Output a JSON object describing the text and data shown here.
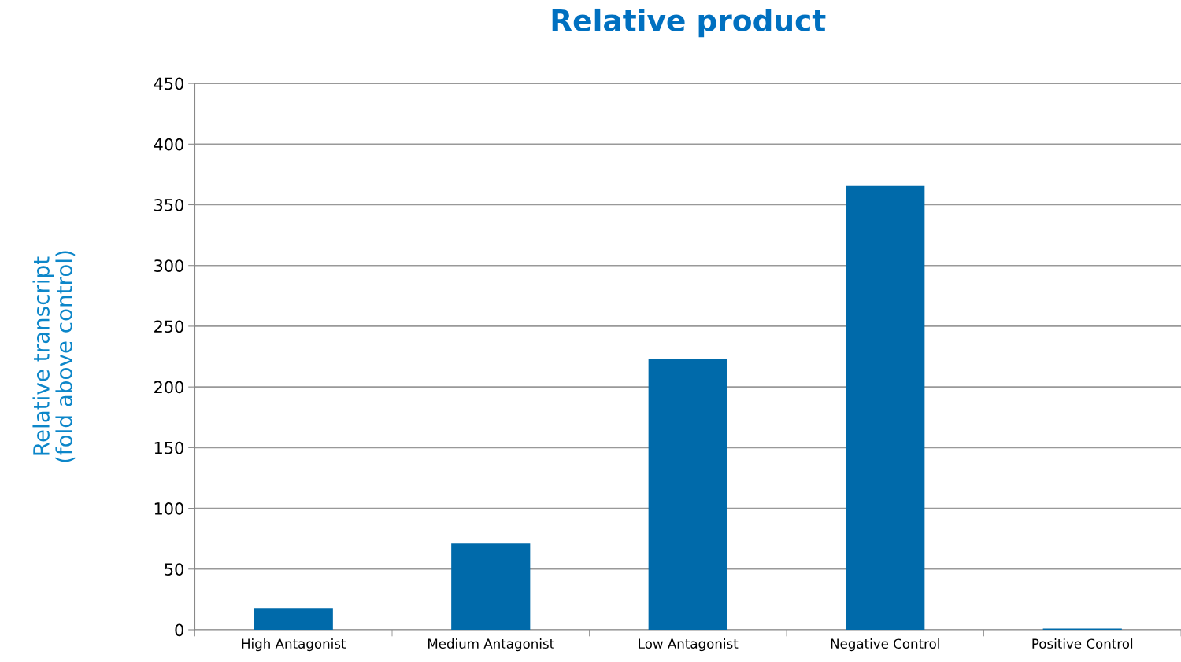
{
  "chart_data": {
    "type": "bar",
    "title": "Relative product",
    "ylabel": "Relative transcript\n(fold above control)",
    "categories": [
      "High Antagonist",
      "Medium Antagonist",
      "Low Antagonist",
      "Negative Control",
      "Positive Control"
    ],
    "values": [
      18,
      71,
      223,
      366,
      1
    ],
    "color": "#006aaa",
    "ylim": [
      0,
      450
    ],
    "yticks": [
      0,
      50,
      100,
      150,
      200,
      250,
      300,
      350,
      400,
      450
    ],
    "grid": "y",
    "legend": false
  }
}
